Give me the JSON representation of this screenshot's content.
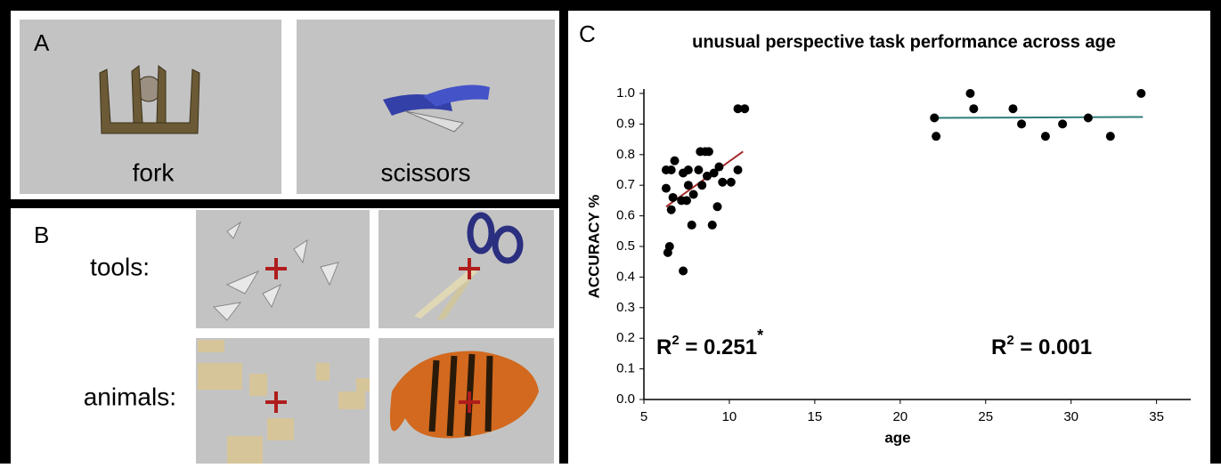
{
  "panels": {
    "a": {
      "label": "A",
      "items": [
        "fork",
        "scissors"
      ]
    },
    "b": {
      "label": "B",
      "rows": [
        "tools:",
        "animals:"
      ]
    },
    "c": {
      "label": "C"
    }
  },
  "chart_data": {
    "type": "scatter",
    "title": "unusual perspective task performance across age",
    "x_label": "age",
    "y_label": "ACCURACY %",
    "color": "#000000",
    "x": [
      6.3,
      6.6,
      6.8,
      6.3,
      6.7,
      6.6,
      6.5,
      6.4,
      7.3,
      7.3,
      7.6,
      7.6,
      7.9,
      7.5,
      7.2,
      7.8,
      8.3,
      8.6,
      8.8,
      8.2,
      8.4,
      8.7,
      9.1,
      9.4,
      9.3,
      9.0,
      9.6,
      10.1,
      10.5,
      10.5,
      10.9,
      22.0,
      22.1,
      24.1,
      24.3,
      26.6,
      27.1,
      28.5,
      29.5,
      31.0,
      32.3,
      34.1
    ],
    "values": [
      0.75,
      0.75,
      0.78,
      0.69,
      0.66,
      0.62,
      0.5,
      0.48,
      0.42,
      0.74,
      0.75,
      0.7,
      0.67,
      0.65,
      0.65,
      0.57,
      0.81,
      0.81,
      0.81,
      0.75,
      0.7,
      0.73,
      0.74,
      0.76,
      0.63,
      0.57,
      0.71,
      0.71,
      0.75,
      0.95,
      0.95,
      0.92,
      0.86,
      1.0,
      0.95,
      0.95,
      0.9,
      0.86,
      0.9,
      0.92,
      0.86,
      1.0
    ],
    "trend_lines": [
      {
        "color": "#a52a2a",
        "x": [
          6.3,
          10.8
        ],
        "y": [
          0.63,
          0.81
        ]
      },
      {
        "color": "#2e7d7a",
        "x": [
          22.0,
          34.2
        ],
        "y": [
          0.92,
          0.923
        ]
      }
    ],
    "annotations": [
      {
        "base": "R",
        "superscript": "2",
        "text": " = 0.251",
        "note": "*"
      },
      {
        "base": "R",
        "superscript": "2",
        "text": " = 0.001"
      }
    ],
    "xlim": [
      5,
      37
    ],
    "xticks": [
      5,
      10,
      15,
      20,
      25,
      30,
      35
    ],
    "ylim": [
      0,
      1
    ],
    "yticks": [
      {
        "value": 0,
        "label": "0.0"
      },
      0.1,
      0.2,
      0.3,
      0.4,
      0.5,
      0.6,
      0.7,
      0.8,
      0.9,
      {
        "value": 1,
        "label": "1.0"
      }
    ]
  }
}
